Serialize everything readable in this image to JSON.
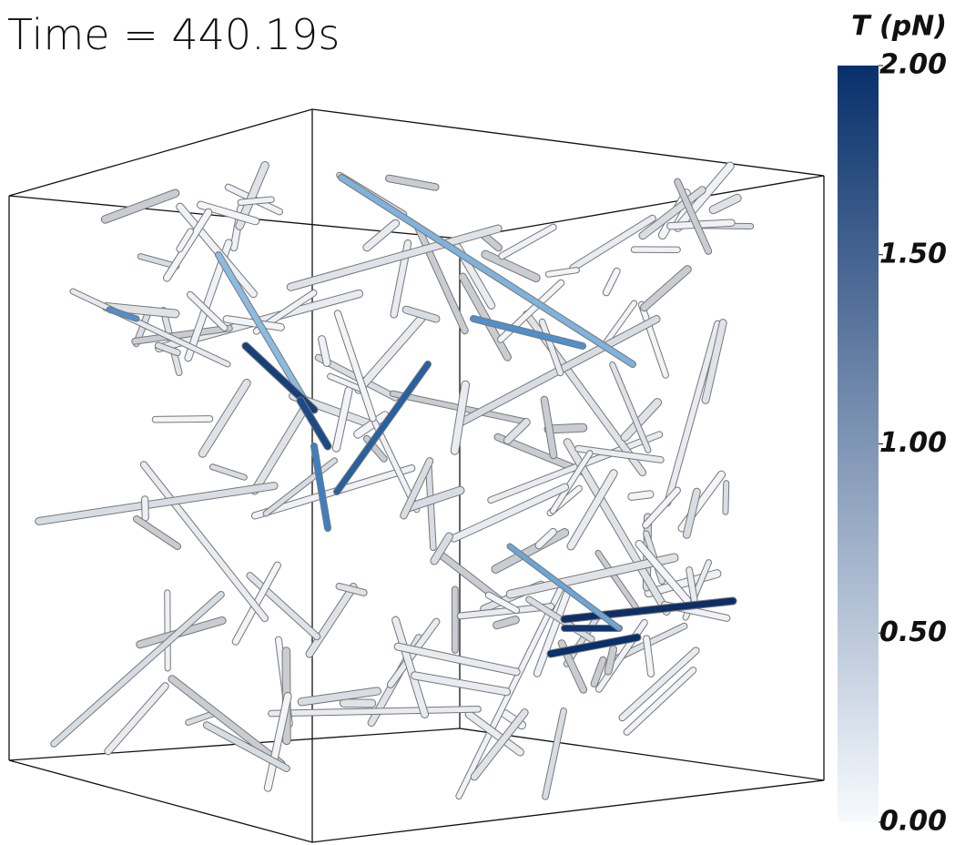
{
  "time_label": "Time = 440.19s",
  "colorbar": {
    "title": "T (pN)",
    "range": [
      0,
      2
    ],
    "colors": [
      "#f7fbff",
      "#08306b"
    ],
    "ticks": [
      {
        "value": 0,
        "label": "0.00"
      },
      {
        "value": 0.5,
        "label": "0.50"
      },
      {
        "value": 1,
        "label": "1.00"
      },
      {
        "value": 1.5,
        "label": "1.50"
      },
      {
        "value": 2,
        "label": "2.00"
      }
    ]
  }
}
